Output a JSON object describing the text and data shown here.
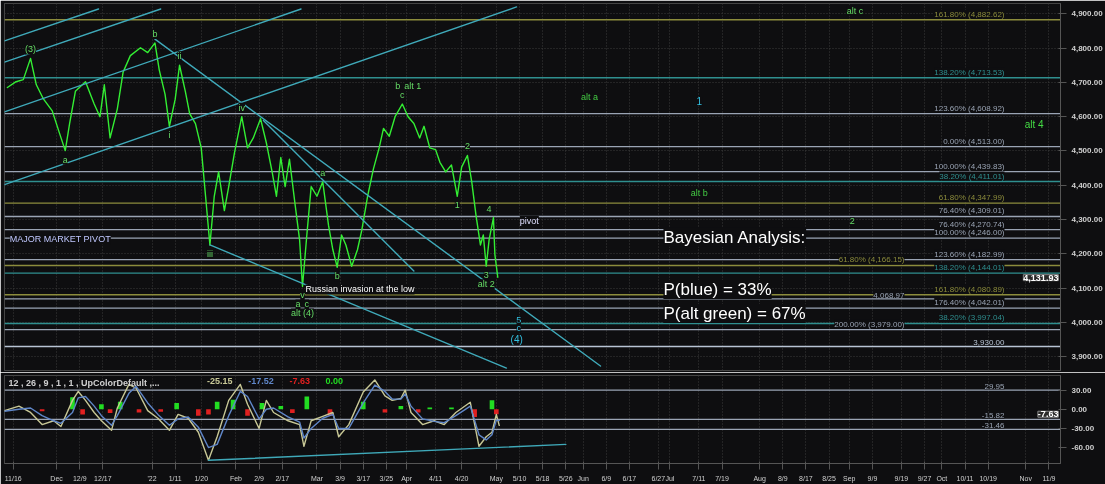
{
  "chart_data": [
    {
      "type": "line",
      "xlim": [
        "2021-11-13",
        "2022-11-13"
      ],
      "ylim": [
        3860,
        4930
      ],
      "tick_labels": "y",
      "grid": true,
      "xticks": [
        {
          "value": "2021-11-16",
          "label": null
        },
        {
          "value": "2021-12-01",
          "label": null
        },
        {
          "value": "2021-12-09",
          "label": null
        },
        {
          "value": "2021-12-17",
          "label": null
        },
        {
          "value": "2022-01-03",
          "label": null
        },
        {
          "value": "2022-01-11",
          "label": null
        },
        {
          "value": "2022-01-20",
          "label": null
        },
        {
          "value": "2022-02-01",
          "label": null
        },
        {
          "value": "2022-02-09",
          "label": null
        },
        {
          "value": "2022-02-17",
          "label": null
        },
        {
          "value": "2022-03-01",
          "label": null
        },
        {
          "value": "2022-03-09",
          "label": null
        },
        {
          "value": "2022-03-17",
          "label": null
        },
        {
          "value": "2022-03-25",
          "label": null
        },
        {
          "value": "2022-04-01",
          "label": null
        },
        {
          "value": "2022-04-11",
          "label": null
        },
        {
          "value": "2022-04-20",
          "label": null
        },
        {
          "value": "2022-05-02",
          "label": null
        },
        {
          "value": "2022-05-10",
          "label": null
        },
        {
          "value": "2022-05-18",
          "label": null
        },
        {
          "value": "2022-05-26",
          "label": null
        },
        {
          "value": "2022-06-01",
          "label": null
        },
        {
          "value": "2022-06-09",
          "label": null
        },
        {
          "value": "2022-06-17",
          "label": null
        },
        {
          "value": "2022-06-27",
          "label": null
        },
        {
          "value": "2022-07-01",
          "label": null
        },
        {
          "value": "2022-07-11",
          "label": null
        },
        {
          "value": "2022-07-19",
          "label": null
        },
        {
          "value": "2022-08-01",
          "label": null
        },
        {
          "value": "2022-08-09",
          "label": null
        },
        {
          "value": "2022-08-17",
          "label": null
        },
        {
          "value": "2022-08-25",
          "label": null
        },
        {
          "value": "2022-09-01",
          "label": null
        },
        {
          "value": "2022-09-09",
          "label": null
        },
        {
          "value": "2022-09-19",
          "label": null
        },
        {
          "value": "2022-09-27",
          "label": null
        },
        {
          "value": "2022-10-03",
          "label": null
        },
        {
          "value": "2022-10-11",
          "label": null
        },
        {
          "value": "2022-10-19",
          "label": null
        },
        {
          "value": "2022-11-01",
          "label": null
        },
        {
          "value": "2022-11-09",
          "label": null
        }
      ],
      "yticks": [
        {
          "value": 3900,
          "label": "3,900.00"
        },
        {
          "value": 4000,
          "label": "4,000.00"
        },
        {
          "value": 4100,
          "label": "4,100.00"
        },
        {
          "value": 4200,
          "label": "4,200.00"
        },
        {
          "value": 4300,
          "label": "4,300.00"
        },
        {
          "value": 4400,
          "label": "4,400.00"
        },
        {
          "value": 4500,
          "label": "4,500.00"
        },
        {
          "value": 4600,
          "label": "4,600.00"
        },
        {
          "value": 4700,
          "label": "4,700.00"
        },
        {
          "value": 4800,
          "label": "4,800.00"
        },
        {
          "value": 4900,
          "label": "4,900.00"
        }
      ],
      "series": [
        {
          "color": "#33ee33",
          "x": [
            "2021-11-14",
            "2021-11-17",
            "2021-11-19T12:00",
            "2021-11-22",
            "2021-11-24",
            "2021-11-26T12:00",
            "2021-11-29T12:00",
            "2021-12-02",
            "2021-12-04",
            "2021-12-05T12:00",
            "2021-12-07T12:00",
            "2021-12-11",
            "2021-12-14",
            "2021-12-16",
            "2021-12-17T12:00",
            "2021-12-19T12:00",
            "2021-12-22",
            "2021-12-24",
            "2021-12-26T12:00",
            "2021-12-30",
            "2022-01-01T12:00",
            "2022-01-04",
            "2022-01-05T12:00",
            "2022-01-07T12:00",
            "2022-01-09",
            "2022-01-11",
            "2022-01-12T12:00",
            "2022-01-14T12:00",
            "2022-01-16",
            "2022-01-18",
            "2022-01-20",
            "2022-01-21T12:00",
            "2022-01-23",
            "2022-01-24T12:00",
            "2022-01-26",
            "2022-01-28",
            "2022-01-29T12:00",
            "2022-01-31T12:00",
            "2022-02-03",
            "2022-02-05",
            "2022-02-07",
            "2022-02-09T12:00",
            "2022-02-11T12:00",
            "2022-02-13T12:00",
            "2022-02-15",
            "2022-02-16T12:00",
            "2022-02-18",
            "2022-02-19T12:00",
            "2022-02-21T12:00",
            "2022-02-23",
            "2022-02-24",
            "2022-02-25T12:00",
            "2022-02-27",
            "2022-03-01",
            "2022-03-03",
            "2022-03-05",
            "2022-03-06T12:00",
            "2022-03-08",
            "2022-03-09T12:00",
            "2022-03-11",
            "2022-03-13",
            "2022-03-15",
            "2022-03-16T12:00",
            "2022-03-18T12:00",
            "2022-03-20T12:00",
            "2022-03-22T12:00",
            "2022-03-24",
            "2022-03-26",
            "2022-03-28",
            "2022-03-30T12:00",
            "2022-04-01T12:00",
            "2022-04-03T12:00",
            "2022-04-05T12:00",
            "2022-04-07",
            "2022-04-09",
            "2022-04-11",
            "2022-04-12T12:00",
            "2022-04-14T12:00",
            "2022-04-16T12:00",
            "2022-04-18T12:00",
            "2022-04-20",
            "2022-04-22",
            "2022-04-23T12:00",
            "2022-04-25",
            "2022-04-26T12:00",
            "2022-04-27T12:00",
            "2022-04-28T12:00",
            "2022-04-29T12:00",
            "2022-05-01",
            "2022-05-01T12:00",
            "2022-05-02T12:00"
          ],
          "values": [
            4685,
            4702,
            4708,
            4770,
            4693,
            4651,
            4617,
            4552,
            4501,
            4580,
            4674,
            4702,
            4637,
            4600,
            4693,
            4538,
            4623,
            4730,
            4778,
            4801,
            4787,
            4815,
            4736,
            4665,
            4572,
            4651,
            4750,
            4674,
            4609,
            4580,
            4509,
            4368,
            4226,
            4368,
            4439,
            4326,
            4396,
            4495,
            4600,
            4509,
            4538,
            4594,
            4524,
            4439,
            4368,
            4481,
            4396,
            4476,
            4340,
            4241,
            4105,
            4255,
            4396,
            4368,
            4410,
            4283,
            4212,
            4161,
            4255,
            4226,
            4164,
            4212,
            4269,
            4368,
            4447,
            4509,
            4566,
            4543,
            4600,
            4637,
            4600,
            4580,
            4538,
            4572,
            4509,
            4504,
            4467,
            4439,
            4459,
            4368,
            4453,
            4487,
            4410,
            4311,
            4226,
            4255,
            4164,
            4241,
            4306,
            4198,
            4131.93
          ]
        },
        {
          "color": "#3fa9b9",
          "x": [
            "2021-11-13",
            "2021-12-15T12:00"
          ],
          "values": [
            4821,
            4914
          ]
        },
        {
          "color": "#3fa9b9",
          "x": [
            "2021-11-13",
            "2022-01-06"
          ],
          "values": [
            4759,
            4914
          ]
        },
        {
          "color": "#3fa9b9",
          "x": [
            "2021-11-13",
            "2022-02-23T12:00"
          ],
          "values": [
            4614,
            4914
          ]
        },
        {
          "color": "#3fa9b9",
          "x": [
            "2021-11-13",
            "2022-05-09"
          ],
          "values": [
            4402,
            4920
          ]
        },
        {
          "color": "#3fa9b9",
          "x": [
            "2022-01-04",
            "2022-06-07"
          ],
          "values": [
            4826,
            3873
          ]
        },
        {
          "color": "#3fa9b9",
          "x": [
            "2022-02-10T12:00",
            "2022-04-03T12:00"
          ],
          "values": [
            4589,
            4150
          ]
        },
        {
          "color": "#3fa9b9",
          "x": [
            "2022-01-23",
            "2022-05-05T12:00"
          ],
          "values": [
            4226,
            3867
          ]
        }
      ],
      "ref_lines": [
        {
          "axis": "y",
          "value": 4882.62,
          "label": "161.80% (4,882.62)",
          "color": "#8c8c3c"
        },
        {
          "axis": "y",
          "value": 4713.53,
          "label": "138.20% (4,713.53)",
          "color": "#2f8f8f"
        },
        {
          "axis": "y",
          "value": 4608.92,
          "label": "123.60% (4,608.92)",
          "color": "#9aa4b4"
        },
        {
          "axis": "y",
          "value": 4513.0,
          "label": "0.00% (4,513.00)",
          "color": "#9aa4b4"
        },
        {
          "axis": "y",
          "value": 4439.83,
          "label": "100.00% (4,439.83)",
          "color": "#9aa4b4"
        },
        {
          "axis": "y",
          "value": 4411.01,
          "label": "38.20% (4,411.01)",
          "color": "#2f8f8f"
        },
        {
          "axis": "y",
          "value": 4347.99,
          "label": "61.80% (4,347.99)",
          "color": "#8c8c3c"
        },
        {
          "axis": "y",
          "value": 4309.01,
          "label": "76.40% (4,309.01)",
          "color": "#9aa4b4"
        },
        {
          "axis": "y",
          "value": 4270.74,
          "label": "76.40% (4,270.74)",
          "color": "#9aa4b4"
        },
        {
          "axis": "y",
          "value": 4246.0,
          "label": "100.00% (4,246.00)",
          "color": "#9aa4b4"
        },
        {
          "axis": "y",
          "value": 4182.99,
          "label": "123.60% (4,182.99)",
          "color": "#9aa4b4"
        },
        {
          "axis": "y",
          "value": 4166.15,
          "label": "61.80% (4,166.15)",
          "color": "#8c8c3c"
        },
        {
          "axis": "y",
          "value": 4144.01,
          "label": "138.20% (4,144.01)",
          "color": "#2f8f8f"
        },
        {
          "axis": "y",
          "value": 4080.89,
          "label": "161.80% (4,080.89)",
          "color": "#8c8c3c"
        },
        {
          "axis": "y",
          "value": 4068.97,
          "label": "4,068.97",
          "color": "#9aa4b4"
        },
        {
          "axis": "y",
          "value": 4042.01,
          "label": "176.40% (4,042.01)",
          "color": "#9aa4b4"
        },
        {
          "axis": "y",
          "value": 3997.04,
          "label": "38.20% (3,997.04)",
          "color": "#2f8f8f"
        },
        {
          "axis": "y",
          "value": 3979.0,
          "label": "200.00% (3,979.00)",
          "color": "#9aa4b4"
        },
        {
          "axis": "y",
          "value": 3930.0,
          "label": "3,930.00",
          "color": "#b8c4d4"
        }
      ],
      "annotations": [
        "Bayesian Analysis:",
        "P(blue) = 33%",
        "P(alt green) = 67%",
        "4,131.93",
        "alt a",
        "1",
        "alt b",
        "alt 4",
        "pivot",
        "5",
        "c",
        "(4)",
        "MAJOR MARKET PIVOT",
        "Russian invasion at the low",
        {
          "text": "(3)",
          "x": "2021-11-22",
          "y": 4770
        },
        {
          "text": "a",
          "x": "2021-12-04",
          "y": 4501
        },
        {
          "text": "b",
          "x": "2022-01-04",
          "y": 4815
        },
        {
          "text": "i",
          "x": "2022-01-09",
          "y": 4572
        },
        {
          "text": "ii",
          "x": "2022-01-12T12:00",
          "y": 4750
        },
        {
          "text": "iii",
          "x": "2022-01-23",
          "y": 4226
        },
        {
          "text": "iv",
          "x": "2022-02-03",
          "y": 4600
        },
        {
          "text": "a",
          "x": "2022-03-03",
          "y": 4410
        },
        {
          "text": "b",
          "x": "2022-03-08",
          "y": 4161
        },
        {
          "text": "v",
          "x": "2022-02-24",
          "y": 4105
        },
        {
          "text": "a",
          "x": "2022-02-24",
          "y": 4105
        },
        {
          "text": "c",
          "x": "2022-02-24",
          "y": 4105
        },
        {
          "text": "alt (4)",
          "x": "2022-02-24",
          "y": 4105
        },
        {
          "text": "c",
          "x": "2022-03-30T12:00",
          "y": 4637
        },
        {
          "text": "b",
          "x": "2022-03-30T12:00",
          "y": 4637
        },
        {
          "text": "alt 1",
          "x": "2022-03-30T12:00",
          "y": 4637
        },
        {
          "text": "2",
          "x": "2022-04-22",
          "y": 4487
        },
        {
          "text": "1",
          "x": "2022-04-18T12:00",
          "y": 4368
        },
        {
          "text": "3",
          "x": "2022-04-28T12:00",
          "y": 4164
        },
        {
          "text": "alt 2",
          "x": "2022-04-28T12:00",
          "y": 4164
        },
        {
          "text": "4",
          "x": "2022-04-29T12:00",
          "y": 4306
        },
        {
          "text": "alt c",
          "x": "2022-09-03",
          "y": 4882.62
        },
        {
          "text": "2",
          "x": "2022-09-02",
          "y": 4270.74
        }
      ]
    },
    {
      "type": "line",
      "title": "12 , 26 , 9 , 1 , 1 , UpColorDefault ,...",
      "xlim": [
        "2021-11-13",
        "2022-11-13"
      ],
      "ylim": [
        -85,
        53
      ],
      "grid": "x",
      "legend": "top",
      "xticks": [
        {
          "value": "2021-11-16",
          "label": "11/16"
        },
        {
          "value": "2021-12-01",
          "label": "Dec"
        },
        {
          "value": "2021-12-09",
          "label": "12/9"
        },
        {
          "value": "2021-12-17",
          "label": "12/17"
        },
        {
          "value": "2022-01-03",
          "label": "'22"
        },
        {
          "value": "2022-01-11",
          "label": "1/11"
        },
        {
          "value": "2022-01-20",
          "label": "1/20"
        },
        {
          "value": "2022-02-01",
          "label": "Feb"
        },
        {
          "value": "2022-02-09",
          "label": "2/9"
        },
        {
          "value": "2022-02-17",
          "label": "2/17"
        },
        {
          "value": "2022-03-01",
          "label": "Mar"
        },
        {
          "value": "2022-03-09",
          "label": "3/9"
        },
        {
          "value": "2022-03-17",
          "label": "3/17"
        },
        {
          "value": "2022-03-25",
          "label": "3/25"
        },
        {
          "value": "2022-04-01",
          "label": "Apr"
        },
        {
          "value": "2022-04-11",
          "label": "4/11"
        },
        {
          "value": "2022-04-20",
          "label": "4/20"
        },
        {
          "value": "2022-05-02",
          "label": "May"
        },
        {
          "value": "2022-05-10",
          "label": "5/10"
        },
        {
          "value": "2022-05-18",
          "label": "5/18"
        },
        {
          "value": "2022-05-26",
          "label": "5/26"
        },
        {
          "value": "2022-06-01",
          "label": "Jun"
        },
        {
          "value": "2022-06-09",
          "label": "6/9"
        },
        {
          "value": "2022-06-17",
          "label": "6/17"
        },
        {
          "value": "2022-06-27",
          "label": "6/27"
        },
        {
          "value": "2022-07-01",
          "label": "Jul"
        },
        {
          "value": "2022-07-11",
          "label": "7/11"
        },
        {
          "value": "2022-07-19",
          "label": "7/19"
        },
        {
          "value": "2022-08-01",
          "label": "Aug"
        },
        {
          "value": "2022-08-09",
          "label": "8/9"
        },
        {
          "value": "2022-08-17",
          "label": "8/17"
        },
        {
          "value": "2022-08-25",
          "label": "8/25"
        },
        {
          "value": "2022-09-01",
          "label": "Sep"
        },
        {
          "value": "2022-09-09",
          "label": "9/9"
        },
        {
          "value": "2022-09-19",
          "label": "9/19"
        },
        {
          "value": "2022-09-27",
          "label": "9/27"
        },
        {
          "value": "2022-10-03",
          "label": "Oct"
        },
        {
          "value": "2022-10-11",
          "label": "10/11"
        },
        {
          "value": "2022-10-19",
          "label": "10/19"
        },
        {
          "value": "2022-11-01",
          "label": "Nov"
        },
        {
          "value": "2022-11-09",
          "label": "11/9"
        }
      ],
      "yticks": [
        {
          "value": 30,
          "label": "30.00"
        },
        {
          "value": 0,
          "label": "0.00"
        },
        {
          "value": -30,
          "label": "-30.00"
        },
        {
          "value": -60,
          "label": "-60.00"
        }
      ],
      "series": [
        {
          "name": "-25.15",
          "color": "#c8c896",
          "x": [
            "2021-11-13",
            "2021-11-18",
            "2021-11-22",
            "2021-11-26",
            "2021-11-30",
            "2021-12-02T12:00",
            "2021-12-06T12:00",
            "2021-12-08T12:00",
            "2021-12-11",
            "2021-12-14",
            "2021-12-16T12:00",
            "2021-12-20",
            "2021-12-22",
            "2021-12-26",
            "2021-12-28T12:00",
            "2022-01-01T12:00",
            "2022-01-05",
            "2022-01-09",
            "2022-01-12",
            "2022-01-15T12:00",
            "2022-01-19",
            "2022-01-22T12:00",
            "2022-01-25T12:00",
            "2022-01-29T12:00",
            "2022-02-02T12:00",
            "2022-02-05",
            "2022-02-09",
            "2022-02-11T12:00",
            "2022-02-14",
            "2022-02-19",
            "2022-02-23",
            "2022-02-24T12:00",
            "2022-02-27",
            "2022-03-03",
            "2022-03-06T12:00",
            "2022-03-08T12:00",
            "2022-03-12",
            "2022-03-17",
            "2022-03-21",
            "2022-03-24T12:00",
            "2022-03-27",
            "2022-03-30",
            "2022-03-31T12:00",
            "2022-04-02T12:00",
            "2022-04-06T12:00",
            "2022-04-10T12:00",
            "2022-04-14",
            "2022-04-18",
            "2022-04-23",
            "2022-04-26",
            "2022-04-28T12:00",
            "2022-04-30T12:00",
            "2022-05-02",
            "2022-05-03"
          ],
          "values": [
            -2,
            5,
            -5,
            -24,
            -18,
            -27,
            14,
            28,
            14,
            -5,
            -18,
            -33,
            2,
            39,
            33,
            -2,
            -14,
            -33,
            -8,
            -14,
            -36,
            -80,
            -43,
            14,
            39,
            8,
            -30,
            14,
            -5,
            -18,
            -24,
            -58,
            -18,
            -11,
            -5,
            -43,
            -24,
            27,
            46,
            21,
            14,
            17,
            30,
            -5,
            -24,
            -18,
            -24,
            -5,
            11,
            -58,
            -43,
            -36,
            -8,
            -25.15
          ]
        },
        {
          "name": "-17.52",
          "color": "#5f86c8",
          "x": [
            "2021-11-13",
            "2021-11-18",
            "2021-11-22",
            "2021-11-26",
            "2021-11-30",
            "2021-12-02T12:00",
            "2021-12-06T12:00",
            "2021-12-08T12:00",
            "2021-12-11",
            "2021-12-14",
            "2021-12-16T12:00",
            "2021-12-20",
            "2021-12-22",
            "2021-12-26",
            "2021-12-28T12:00",
            "2022-01-01T12:00",
            "2022-01-05",
            "2022-01-09",
            "2022-01-12",
            "2022-01-15T12:00",
            "2022-01-19",
            "2022-01-22T12:00",
            "2022-01-25T12:00",
            "2022-01-29T12:00",
            "2022-02-02T12:00",
            "2022-02-05",
            "2022-02-09",
            "2022-02-11T12:00",
            "2022-02-14",
            "2022-02-19",
            "2022-02-23",
            "2022-02-24T12:00",
            "2022-02-27",
            "2022-03-03",
            "2022-03-06T12:00",
            "2022-03-08T12:00",
            "2022-03-12",
            "2022-03-17",
            "2022-03-21",
            "2022-03-24T12:00",
            "2022-03-27",
            "2022-03-30",
            "2022-03-31T12:00",
            "2022-04-02T12:00",
            "2022-04-06T12:00",
            "2022-04-10T12:00",
            "2022-04-14",
            "2022-04-18",
            "2022-04-23",
            "2022-04-26",
            "2022-04-28T12:00",
            "2022-04-30T12:00",
            "2022-05-02",
            "2022-05-03"
          ],
          "values": [
            -3,
            0,
            2,
            -10,
            -18,
            -22,
            -5,
            18,
            20,
            5,
            -10,
            -25,
            -10,
            25,
            36,
            10,
            -8,
            -25,
            -15,
            -12,
            -28,
            -60,
            -55,
            -10,
            28,
            20,
            -15,
            0,
            2,
            -12,
            -20,
            -45,
            -30,
            -14,
            -8,
            -30,
            -30,
            10,
            38,
            28,
            16,
            16,
            24,
            5,
            -15,
            -19,
            -21,
            -10,
            5,
            -40,
            -48,
            -40,
            -17,
            -17.52
          ]
        },
        {
          "name": "-7.63",
          "type": "bar",
          "color": "#e02020",
          "x": [
            "2021-11-26",
            "2021-12-10",
            "2021-12-19T12:00",
            "2021-12-29T12:00",
            "2022-01-06",
            "2022-01-19",
            "2022-01-22T12:00",
            "2022-02-05",
            "2022-02-20T12:00",
            "2022-03-05T12:00",
            "2022-03-24T12:00",
            "2022-04-05",
            "2022-04-24T12:00",
            "2022-05-02"
          ],
          "values": [
            -3,
            -8,
            -6,
            -5,
            -4,
            -10,
            -8,
            -10,
            -6,
            -10,
            -5,
            -5,
            -12,
            -7.63
          ]
        },
        {
          "name": "0.00",
          "type": "bar",
          "color": "#22dd22",
          "x": [
            "2021-12-06T12:00",
            "2021-12-16T12:00",
            "2021-12-23",
            "2022-01-11T12:00",
            "2022-01-25T12:00",
            "2022-01-31",
            "2022-02-10",
            "2022-02-16T12:00",
            "2022-02-25T12:00",
            "2022-03-17",
            "2022-03-30",
            "2022-04-09",
            "2022-04-16T12:00",
            "2022-04-30T12:00"
          ],
          "values": [
            19,
            8,
            12,
            10,
            12,
            15,
            10,
            5,
            20,
            12,
            5,
            3,
            3,
            14
          ]
        },
        {
          "color": "#3fa9b9",
          "x": [
            "2022-01-22T12:00",
            "2022-05-26"
          ],
          "values": [
            -80,
            -55
          ]
        }
      ],
      "ref_lines": [
        {
          "axis": "y",
          "value": 29.95,
          "label": "29.95",
          "color": "#9aa4b4"
        },
        {
          "axis": "y",
          "value": -15.82,
          "label": "-15.82",
          "color": "#9aa4b4"
        },
        {
          "axis": "y",
          "value": -31.46,
          "label": "-31.46",
          "color": "#9aa4b4"
        }
      ],
      "annotations": [
        "-7.63"
      ]
    }
  ]
}
